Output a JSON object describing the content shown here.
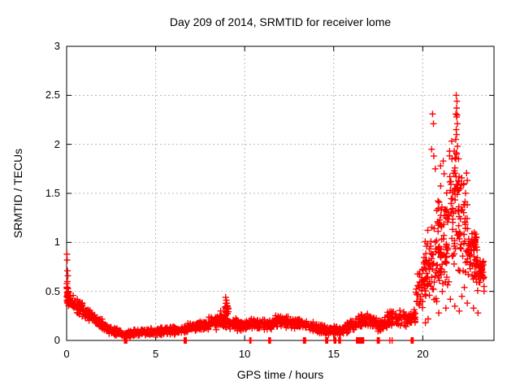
{
  "window": {
    "background": "#ffffff"
  },
  "chart_data": {
    "type": "scatter",
    "title": "Day 209 of 2014, SRMTID for receiver lome",
    "xlabel": "GPS time / hours",
    "ylabel": "SRMTID / TECUs",
    "xlim": [
      0,
      24
    ],
    "ylim": [
      0,
      3
    ],
    "grid": true,
    "legend": "none",
    "xtick_values": [
      0,
      5,
      10,
      15,
      20
    ],
    "xtick_labels": [
      "0",
      "5",
      "10",
      "15",
      "20"
    ],
    "ytick_values": [
      0,
      0.5,
      1,
      1.5,
      2,
      2.5,
      3
    ],
    "ytick_labels": [
      "0",
      "0.5",
      "1",
      "1.5",
      "2",
      "2.5",
      "3"
    ],
    "colors": {
      "marker": "#ff0000",
      "grid": "#b8b8b8",
      "axis": "#000000",
      "text": "#000000"
    },
    "marker": {
      "shape": "plus",
      "size": 8
    },
    "series_name": "SRMTID",
    "seed": 42,
    "segments_format": "[x_start, x_end, n_points, y_start, y_end, y_spread, y_min(optional)] band envelope read from plot",
    "band_segments": [
      [
        0.0,
        0.15,
        25,
        0.5,
        0.42,
        0.13
      ],
      [
        0.05,
        0.5,
        35,
        0.42,
        0.36,
        0.09
      ],
      [
        0.5,
        1.0,
        40,
        0.36,
        0.3,
        0.08
      ],
      [
        1.0,
        1.5,
        40,
        0.3,
        0.22,
        0.07
      ],
      [
        1.5,
        2.0,
        40,
        0.22,
        0.16,
        0.06
      ],
      [
        2.0,
        2.5,
        40,
        0.14,
        0.11,
        0.05
      ],
      [
        2.5,
        3.0,
        40,
        0.1,
        0.08,
        0.045
      ],
      [
        3.0,
        3.6,
        45,
        0.07,
        0.06,
        0.04
      ],
      [
        3.6,
        4.4,
        55,
        0.07,
        0.08,
        0.04
      ],
      [
        4.4,
        5.2,
        55,
        0.08,
        0.09,
        0.045
      ],
      [
        5.2,
        6.0,
        55,
        0.1,
        0.11,
        0.05
      ],
      [
        6.0,
        6.8,
        55,
        0.1,
        0.12,
        0.05
      ],
      [
        6.8,
        7.6,
        55,
        0.13,
        0.16,
        0.06
      ],
      [
        7.6,
        8.4,
        55,
        0.16,
        0.18,
        0.07
      ],
      [
        8.4,
        8.9,
        35,
        0.18,
        0.2,
        0.08
      ],
      [
        8.6,
        8.75,
        10,
        0.22,
        0.22,
        0.07
      ],
      [
        8.9,
        9.1,
        22,
        0.28,
        0.28,
        0.13
      ],
      [
        8.9,
        9.6,
        45,
        0.18,
        0.16,
        0.07
      ],
      [
        9.6,
        10.5,
        60,
        0.15,
        0.17,
        0.06
      ],
      [
        10.5,
        11.5,
        65,
        0.17,
        0.16,
        0.06
      ],
      [
        11.5,
        12.5,
        65,
        0.18,
        0.2,
        0.07
      ],
      [
        12.5,
        13.5,
        65,
        0.18,
        0.15,
        0.06
      ],
      [
        13.5,
        14.5,
        65,
        0.14,
        0.12,
        0.06
      ],
      [
        14.5,
        15.5,
        60,
        0.1,
        0.1,
        0.05
      ],
      [
        15.5,
        16.3,
        50,
        0.12,
        0.16,
        0.07
      ],
      [
        16.3,
        17.3,
        60,
        0.18,
        0.2,
        0.09
      ],
      [
        17.3,
        18.0,
        45,
        0.16,
        0.18,
        0.08
      ],
      [
        18.0,
        19.0,
        60,
        0.22,
        0.22,
        0.1
      ],
      [
        19.0,
        19.6,
        35,
        0.2,
        0.25,
        0.08
      ],
      [
        19.6,
        20.05,
        30,
        0.45,
        0.6,
        0.28,
        0.12
      ],
      [
        20.05,
        20.5,
        45,
        0.65,
        0.75,
        0.45,
        0.15
      ],
      [
        20.5,
        21.0,
        50,
        0.85,
        0.95,
        0.55,
        0.2
      ],
      [
        21.0,
        21.5,
        50,
        1.0,
        1.1,
        0.6,
        0.25
      ],
      [
        21.5,
        22.0,
        55,
        1.3,
        1.4,
        0.75,
        0.3
      ],
      [
        22.0,
        22.5,
        50,
        1.2,
        1.1,
        0.7,
        0.3
      ],
      [
        22.5,
        23.0,
        45,
        0.88,
        0.85,
        0.3,
        0.35
      ],
      [
        22.85,
        23.05,
        18,
        1.0,
        1.0,
        0.12
      ],
      [
        23.0,
        23.45,
        40,
        0.72,
        0.66,
        0.22,
        0.35
      ]
    ],
    "zero_runs_format": "[x_start, x_end, n_points] markers at y=0 on the axis",
    "zero_runs": [
      [
        3.25,
        3.38,
        5
      ],
      [
        6.6,
        6.72,
        5
      ],
      [
        10.28,
        10.3,
        1
      ],
      [
        10.34,
        10.36,
        1
      ],
      [
        11.35,
        11.45,
        5
      ],
      [
        13.3,
        13.42,
        5
      ],
      [
        14.55,
        14.66,
        5
      ],
      [
        15.02,
        15.12,
        5
      ],
      [
        15.28,
        15.38,
        5
      ],
      [
        16.28,
        16.68,
        16
      ],
      [
        17.45,
        17.56,
        5
      ],
      [
        18.14,
        18.16,
        1
      ],
      [
        18.27,
        18.29,
        1
      ],
      [
        19.35,
        19.46,
        5
      ]
    ],
    "notable_points": [
      [
        0.02,
        0.88
      ],
      [
        0.03,
        0.82
      ],
      [
        0.05,
        0.71
      ],
      [
        0.07,
        0.66
      ],
      [
        0.04,
        0.6
      ],
      [
        8.65,
        0.3
      ],
      [
        8.93,
        0.44
      ],
      [
        8.97,
        0.41
      ],
      [
        9.0,
        0.38
      ],
      [
        9.03,
        0.35
      ],
      [
        8.95,
        0.33
      ],
      [
        20.5,
        1.95
      ],
      [
        20.55,
        2.31
      ],
      [
        20.6,
        2.21
      ],
      [
        20.62,
        1.88
      ],
      [
        20.7,
        1.75
      ],
      [
        21.0,
        1.78
      ],
      [
        21.15,
        1.83
      ],
      [
        21.2,
        1.7
      ],
      [
        21.88,
        2.5
      ],
      [
        21.92,
        2.44
      ],
      [
        21.9,
        2.37
      ],
      [
        21.86,
        2.31
      ],
      [
        21.93,
        2.3
      ],
      [
        21.9,
        2.28
      ],
      [
        21.94,
        2.21
      ],
      [
        21.88,
        2.15
      ],
      [
        21.9,
        2.1
      ],
      [
        21.85,
        2.05
      ],
      [
        21.95,
        1.98
      ],
      [
        21.9,
        1.9
      ],
      [
        22.3,
        1.6
      ],
      [
        22.1,
        1.55
      ],
      [
        20.15,
        0.18
      ],
      [
        20.3,
        0.22
      ],
      [
        20.9,
        0.28
      ],
      [
        21.1,
        0.5
      ],
      [
        21.3,
        0.33
      ],
      [
        21.55,
        0.42
      ],
      [
        21.8,
        0.35
      ],
      [
        22.05,
        0.3
      ],
      [
        22.2,
        0.45
      ],
      [
        22.5,
        0.38
      ],
      [
        22.85,
        0.33
      ],
      [
        23.1,
        0.28
      ]
    ]
  }
}
